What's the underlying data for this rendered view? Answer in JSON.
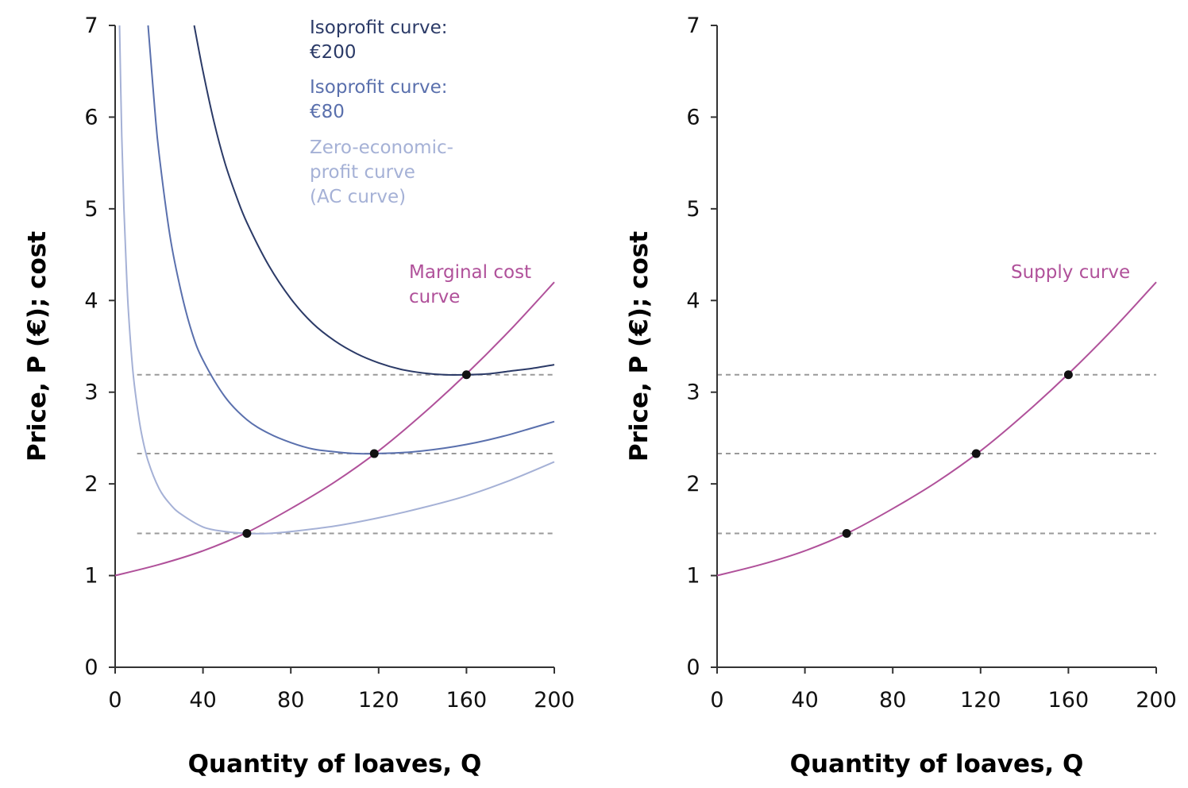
{
  "colors": {
    "isoprofit_200": "#2b3a67",
    "isoprofit_80": "#5a70ad",
    "zero_profit": "#a5b1d6",
    "marginal_cost": "#b0519a",
    "reference_line": "#9a9a9a",
    "point": "#111111",
    "axis": "#333333"
  },
  "chart_data": [
    {
      "type": "line",
      "xlabel": "Quantity of loaves, Q",
      "ylabel": "Price, P (€); cost",
      "xlim": [
        0,
        200
      ],
      "ylim": [
        0,
        7
      ],
      "xticks": [
        0,
        40,
        80,
        120,
        160,
        200
      ],
      "yticks": [
        0,
        1,
        2,
        3,
        4,
        5,
        6,
        7
      ],
      "grid": false,
      "series": [
        {
          "key": "isoprofit_200",
          "name": "Isoprofit curve: €200",
          "label_lines": [
            "Isoprofit curve:",
            "€200"
          ],
          "x": [
            36,
            40,
            45,
            50,
            55,
            60,
            70,
            80,
            90,
            100,
            110,
            120,
            130,
            140,
            150,
            160,
            170,
            180,
            190,
            200
          ],
          "y": [
            7.0,
            6.5,
            5.95,
            5.5,
            5.15,
            4.85,
            4.38,
            4.02,
            3.75,
            3.56,
            3.42,
            3.32,
            3.25,
            3.21,
            3.19,
            3.19,
            3.2,
            3.23,
            3.26,
            3.3
          ]
        },
        {
          "key": "isoprofit_80",
          "name": "Isoprofit curve: €80",
          "label_lines": [
            "Isoprofit curve:",
            "€80"
          ],
          "x": [
            15,
            18,
            20,
            25,
            30,
            35,
            40,
            50,
            60,
            70,
            80,
            90,
            100,
            110,
            118,
            130,
            140,
            150,
            160,
            170,
            180,
            190,
            200
          ],
          "y": [
            7.0,
            6.1,
            5.6,
            4.7,
            4.1,
            3.65,
            3.35,
            2.95,
            2.7,
            2.55,
            2.45,
            2.38,
            2.35,
            2.33,
            2.33,
            2.34,
            2.36,
            2.39,
            2.43,
            2.48,
            2.54,
            2.61,
            2.68
          ]
        },
        {
          "key": "zero_profit",
          "name": "Zero-economic-profit curve (AC curve)",
          "label_lines": [
            "Zero-economic-",
            "profit curve",
            "(AC curve)"
          ],
          "x": [
            2,
            3,
            4,
            5,
            6,
            8,
            10,
            12,
            15,
            20,
            25,
            30,
            40,
            50,
            60,
            70,
            80,
            100,
            120,
            140,
            160,
            180,
            200
          ],
          "y": [
            7.0,
            5.8,
            5.0,
            4.4,
            3.9,
            3.25,
            2.85,
            2.55,
            2.25,
            1.95,
            1.78,
            1.67,
            1.53,
            1.48,
            1.46,
            1.46,
            1.48,
            1.54,
            1.63,
            1.74,
            1.87,
            2.04,
            2.24
          ]
        },
        {
          "key": "marginal_cost",
          "name": "Marginal cost curve",
          "label_lines": [
            "Marginal cost",
            "curve"
          ],
          "x": [
            0,
            20,
            40,
            60,
            80,
            100,
            120,
            140,
            160,
            180,
            200
          ],
          "y": [
            1.0,
            1.12,
            1.27,
            1.47,
            1.73,
            2.02,
            2.36,
            2.76,
            3.2,
            3.68,
            4.2
          ]
        }
      ],
      "reference_lines": [
        {
          "y": 3.19,
          "x_start": 10,
          "x_end": 200
        },
        {
          "y": 2.33,
          "x_start": 10,
          "x_end": 200
        },
        {
          "y": 1.46,
          "x_start": 10,
          "x_end": 200
        }
      ],
      "points": [
        {
          "x": 60,
          "y": 1.46
        },
        {
          "x": 118,
          "y": 2.33
        },
        {
          "x": 160,
          "y": 3.19
        }
      ]
    },
    {
      "type": "line",
      "xlabel": "Quantity of loaves, Q",
      "ylabel": "Price, P (€); cost",
      "xlim": [
        0,
        200
      ],
      "ylim": [
        0,
        7
      ],
      "xticks": [
        0,
        40,
        80,
        120,
        160,
        200
      ],
      "yticks": [
        0,
        1,
        2,
        3,
        4,
        5,
        6,
        7
      ],
      "grid": false,
      "series": [
        {
          "key": "marginal_cost",
          "name": "Supply curve",
          "label_lines": [
            "Supply curve"
          ],
          "x": [
            0,
            20,
            40,
            60,
            80,
            100,
            120,
            140,
            160,
            180,
            200
          ],
          "y": [
            1.0,
            1.12,
            1.27,
            1.47,
            1.73,
            2.02,
            2.36,
            2.76,
            3.2,
            3.68,
            4.2
          ]
        }
      ],
      "reference_lines": [
        {
          "y": 3.19,
          "x_start": 0,
          "x_end": 200
        },
        {
          "y": 2.33,
          "x_start": 0,
          "x_end": 200
        },
        {
          "y": 1.46,
          "x_start": 0,
          "x_end": 200
        }
      ],
      "points": [
        {
          "x": 59,
          "y": 1.46
        },
        {
          "x": 118,
          "y": 2.33
        },
        {
          "x": 160,
          "y": 3.19
        }
      ]
    }
  ]
}
